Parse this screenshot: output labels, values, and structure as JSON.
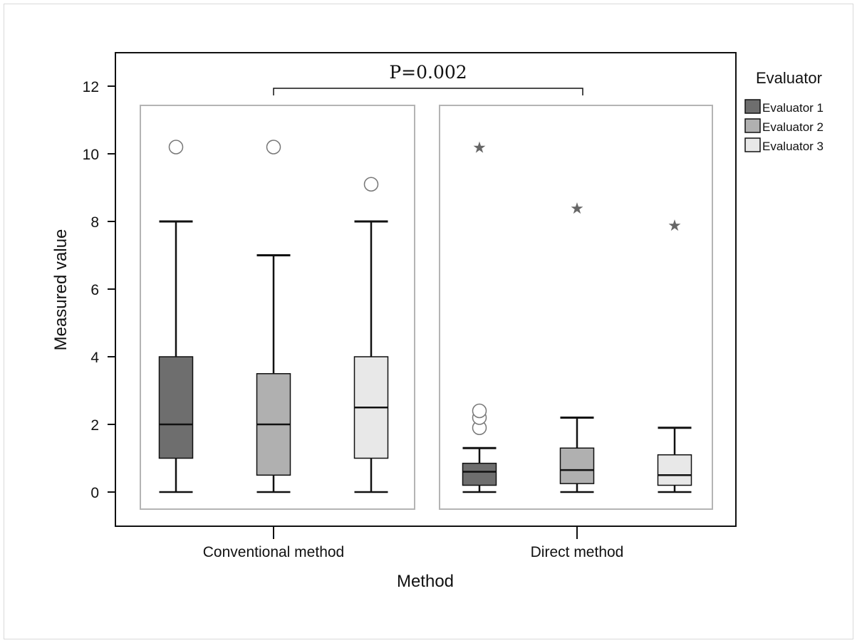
{
  "chart_data": {
    "type": "boxplot",
    "xlabel": "Method",
    "ylabel": "Measured value",
    "ylim": [
      -1,
      13
    ],
    "yticks": [
      0,
      2,
      4,
      6,
      8,
      10,
      12
    ],
    "categories": [
      "Conventional method",
      "Direct method"
    ],
    "legend": {
      "title": "Evaluator",
      "position": "right",
      "entries": [
        "Evaluator 1",
        "Evaluator 2",
        "Evaluator 3"
      ]
    },
    "colors": {
      "Evaluator 1": "#6e6e6e",
      "Evaluator 2": "#b0b0b0",
      "Evaluator 3": "#e8e8e8"
    },
    "annotation": {
      "text": "P=0.002",
      "between": [
        "Conventional method",
        "Direct method"
      ]
    },
    "series": [
      {
        "name": "Evaluator 1",
        "boxes": [
          {
            "category": "Conventional method",
            "min": 0,
            "q1": 1,
            "median": 2,
            "q3": 4,
            "max": 8,
            "outliers": [
              10.2
            ],
            "extremes": []
          },
          {
            "category": "Direct method",
            "min": 0,
            "q1": 0.2,
            "median": 0.6,
            "q3": 0.85,
            "max": 1.3,
            "outliers": [
              1.9,
              2.2,
              2.4
            ],
            "extremes": [
              10.2
            ]
          }
        ]
      },
      {
        "name": "Evaluator 2",
        "boxes": [
          {
            "category": "Conventional method",
            "min": 0,
            "q1": 0.5,
            "median": 2,
            "q3": 3.5,
            "max": 7,
            "outliers": [
              10.2
            ],
            "extremes": []
          },
          {
            "category": "Direct method",
            "min": 0,
            "q1": 0.25,
            "median": 0.65,
            "q3": 1.3,
            "max": 2.2,
            "outliers": [],
            "extremes": [
              8.4
            ]
          }
        ]
      },
      {
        "name": "Evaluator 3",
        "boxes": [
          {
            "category": "Conventional method",
            "min": 0,
            "q1": 1,
            "median": 2.5,
            "q3": 4,
            "max": 8,
            "outliers": [
              9.1
            ],
            "extremes": []
          },
          {
            "category": "Direct method",
            "min": 0,
            "q1": 0.2,
            "median": 0.5,
            "q3": 1.1,
            "max": 1.9,
            "outliers": [],
            "extremes": [
              7.9
            ]
          }
        ]
      }
    ]
  }
}
